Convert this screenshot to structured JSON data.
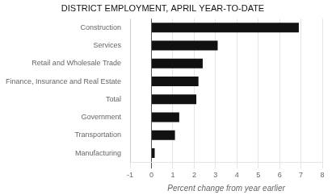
{
  "chart_data": {
    "type": "bar",
    "orientation": "horizontal",
    "title": "DISTRICT EMPLOYMENT, APRIL YEAR-TO-DATE",
    "categories": [
      "Construction",
      "Services",
      "Retail and Wholesale Trade",
      "Finance, Insurance and Real Estate",
      "Total",
      "Government",
      "Transportation",
      "Manufacturing"
    ],
    "values": [
      6.9,
      3.1,
      2.4,
      2.2,
      2.1,
      1.3,
      1.1,
      0.15
    ],
    "color": "#111111",
    "xlabel": "Percent change from year earlier",
    "xlim": [
      -1,
      8
    ],
    "xticks": [
      -1,
      0,
      1,
      2,
      3,
      4,
      5,
      6,
      7,
      8
    ],
    "grid": true
  }
}
